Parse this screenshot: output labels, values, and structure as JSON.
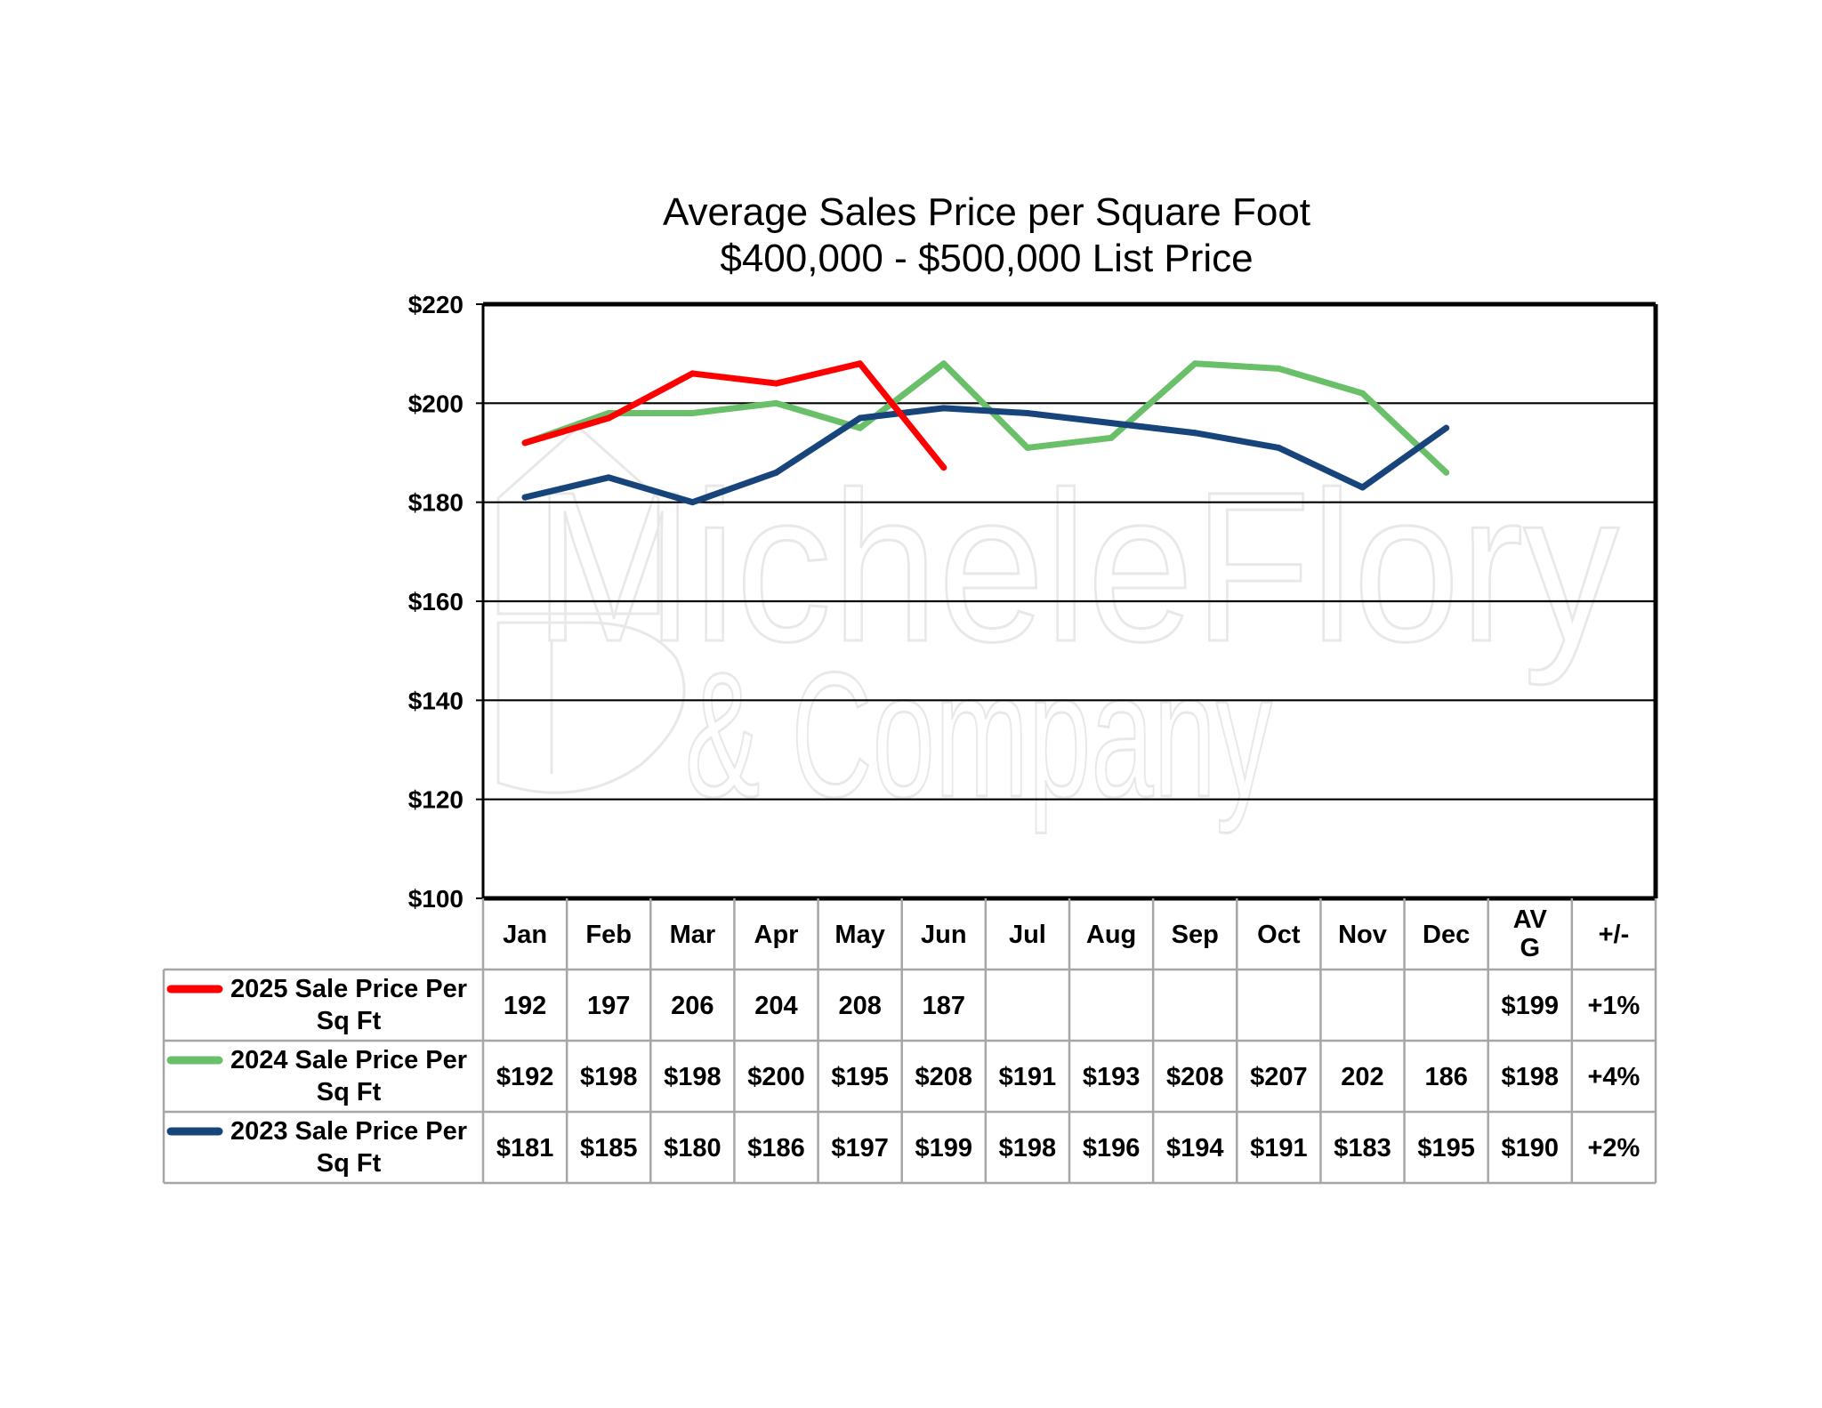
{
  "chart_data": {
    "type": "line",
    "title": "Average Sales Price per Square Foot",
    "subtitle": "$400,000 - $500,000 List Price",
    "watermark": [
      "MicheleFlory",
      "& Company"
    ],
    "categories": [
      "Jan",
      "Feb",
      "Mar",
      "Apr",
      "May",
      "Jun",
      "Jul",
      "Aug",
      "Sep",
      "Oct",
      "Nov",
      "Dec"
    ],
    "ylim": [
      100,
      220
    ],
    "yticks": [
      100,
      120,
      140,
      160,
      180,
      200,
      220
    ],
    "ytick_labels": [
      "$100",
      "$120",
      "$140",
      "$160",
      "$180",
      "$200",
      "$220"
    ],
    "grid": true,
    "legend_placement": "data table below chart",
    "series": [
      {
        "name": "2025 Sale Price Per Sq Ft",
        "color": "#ff0000",
        "values": [
          192,
          197,
          206,
          204,
          208,
          187,
          null,
          null,
          null,
          null,
          null,
          null
        ],
        "table_values": [
          "192",
          "197",
          "206",
          "204",
          "208",
          "187",
          "",
          "",
          "",
          "",
          "",
          ""
        ],
        "avg": "$199",
        "change": "+1%"
      },
      {
        "name": "2024 Sale Price Per Sq Ft",
        "color": "#6abf69",
        "values": [
          192,
          198,
          198,
          200,
          195,
          208,
          191,
          193,
          208,
          207,
          202,
          186
        ],
        "table_values": [
          "$192",
          "$198",
          "$198",
          "$200",
          "$195",
          "$208",
          "$191",
          "$193",
          "$208",
          "$207",
          "202",
          "186"
        ],
        "avg": "$198",
        "change": "+4%"
      },
      {
        "name": "2023 Sale Price Per Sq Ft",
        "color": "#17457b",
        "values": [
          181,
          185,
          180,
          186,
          197,
          199,
          198,
          196,
          194,
          191,
          183,
          195
        ],
        "table_values": [
          "$181",
          "$185",
          "$180",
          "$186",
          "$197",
          "$199",
          "$198",
          "$196",
          "$194",
          "$191",
          "$183",
          "$195"
        ],
        "avg": "$190",
        "change": "+2%"
      }
    ],
    "table_headers": [
      "Jan",
      "Feb",
      "Mar",
      "Apr",
      "May",
      "Jun",
      "Jul",
      "Aug",
      "Sep",
      "Oct",
      "Nov",
      "Dec",
      "AV G",
      "+/-"
    ]
  }
}
